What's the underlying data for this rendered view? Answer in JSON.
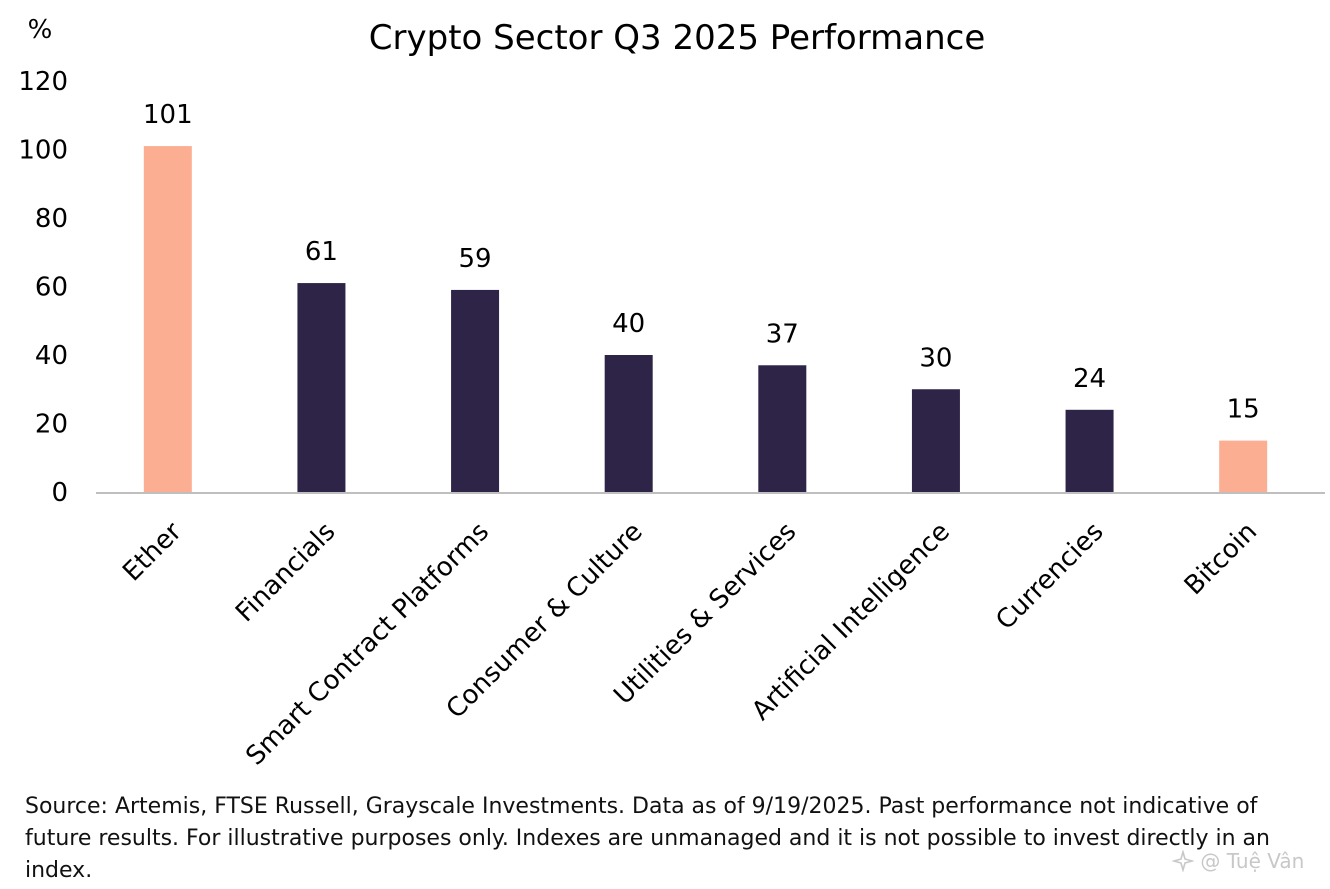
{
  "chart_data": {
    "type": "bar",
    "title": "Crypto Sector Q3 2025 Performance",
    "ylabel": "%",
    "xlabel": "",
    "ylim": [
      0,
      120
    ],
    "yticks": [
      0,
      20,
      40,
      60,
      80,
      100,
      120
    ],
    "grid": false,
    "categories": [
      "Ether",
      "Financials",
      "Smart Contract Platforms",
      "Consumer & Culture",
      "Utilities & Services",
      "Artificial Intelligence",
      "Currencies",
      "Bitcoin"
    ],
    "values": [
      101,
      61,
      59,
      40,
      37,
      30,
      24,
      15
    ],
    "data_labels": [
      "101",
      "61",
      "59",
      "40",
      "37",
      "30",
      "24",
      "15"
    ],
    "colors": [
      "#FCAE93",
      "#2D2448",
      "#2D2448",
      "#2D2448",
      "#2D2448",
      "#2D2448",
      "#2D2448",
      "#FCAE93"
    ],
    "axis_color": "#BFBFBF"
  },
  "footer": {
    "source": "Source: Artemis, FTSE Russell, Grayscale Investments. Data as of 9/19/2025. Past performance not indicative of future results. For illustrative purposes only. Indexes are unmanaged and it is not possible to invest directly in an index."
  },
  "watermark": {
    "text": "@ Tuệ Vân",
    "icon": "sparkle-logo-icon"
  }
}
